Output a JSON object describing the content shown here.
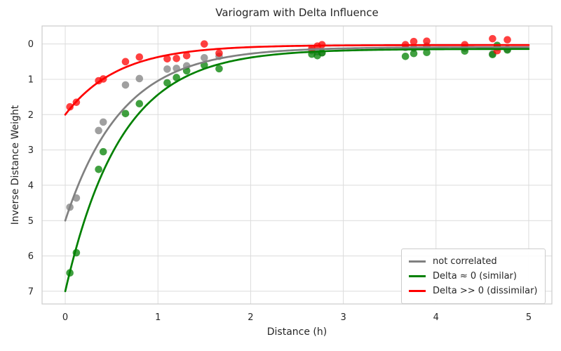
{
  "chart_data": {
    "type": "scatter+line",
    "title": "Variogram with Delta Influence",
    "xlabel": "Distance (h)",
    "ylabel": "Inverse Distance Weight",
    "x_axis": {
      "ticks": [
        0,
        1,
        2,
        3,
        4,
        5
      ],
      "lim": [
        -0.25,
        5.25
      ]
    },
    "y_axis": {
      "ticks": [
        0,
        1,
        2,
        3,
        4,
        5,
        6,
        7
      ],
      "lim_top": -0.51,
      "lim_bottom": 7.36,
      "inverted": true
    },
    "grid": true,
    "legend_position": "lower right",
    "colors": {
      "grid": "#dcdcdc",
      "spine": "#cccccc",
      "text": "#262626",
      "background": "#ffffff"
    },
    "scatter_alpha": 0.75,
    "x": [
      0.05,
      0.12,
      0.36,
      0.41,
      0.65,
      0.8,
      1.1,
      1.2,
      1.31,
      1.5,
      1.66,
      2.66,
      2.72,
      2.77,
      3.67,
      3.76,
      3.9,
      4.31,
      4.61,
      4.66,
      4.77
    ],
    "series": [
      {
        "name": "not correlated",
        "color": "#808080",
        "curve": {
          "start": 5.0,
          "asymptote": 0.09,
          "tau": 0.61
        },
        "y": [
          4.62,
          4.36,
          2.45,
          2.21,
          1.16,
          0.98,
          0.71,
          0.69,
          0.62,
          0.39,
          0.35,
          0.19,
          0.22,
          0.25,
          0.1,
          0.12,
          0.06,
          0.12,
          0.28,
          0.1,
          0.15
        ]
      },
      {
        "name": "Delta ≈ 0 (similar)",
        "color": "#008000",
        "curve": {
          "start": 7.0,
          "asymptote": 0.14,
          "tau": 0.6
        },
        "y": [
          6.48,
          5.91,
          3.55,
          3.05,
          1.97,
          1.69,
          1.1,
          0.95,
          0.76,
          0.6,
          0.7,
          0.29,
          0.33,
          0.25,
          0.35,
          0.27,
          0.24,
          0.2,
          0.3,
          0.04,
          0.17
        ]
      },
      {
        "name": "Delta >> 0 (dissimilar)",
        "color": "#ff0000",
        "curve": {
          "start": 2.0,
          "asymptote": 0.03,
          "tau": 0.57
        },
        "y": [
          1.78,
          1.65,
          1.04,
          0.99,
          0.5,
          0.37,
          0.42,
          0.41,
          0.33,
          0.0,
          0.26,
          0.13,
          0.06,
          0.02,
          0.02,
          -0.07,
          -0.08,
          0.02,
          -0.15,
          0.19,
          -0.12
        ]
      }
    ]
  }
}
